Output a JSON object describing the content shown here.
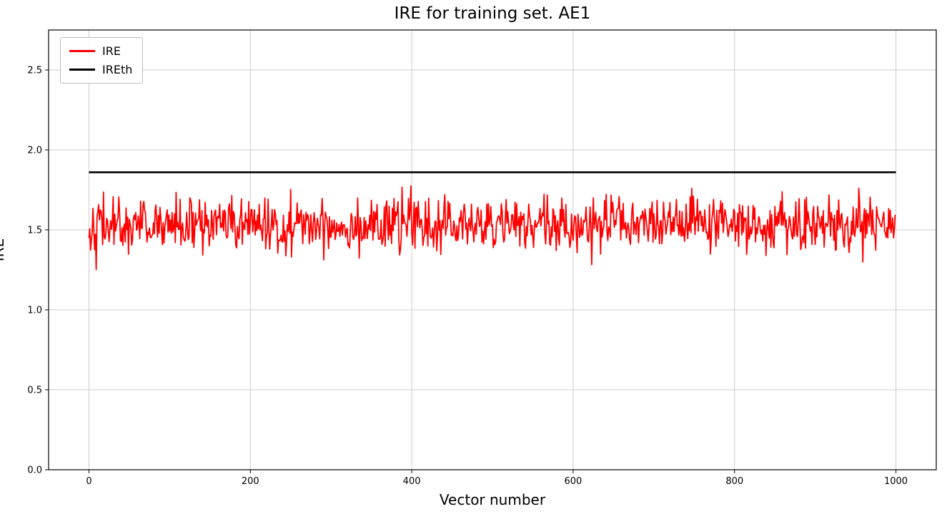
{
  "chart_data": {
    "type": "line",
    "title": "IRE for training set. AE1",
    "xlabel": "Vector number",
    "ylabel": "IRE",
    "xlim": [
      -50,
      1050
    ],
    "ylim": [
      0.0,
      2.75
    ],
    "xticks": [
      0,
      200,
      400,
      600,
      800,
      1000
    ],
    "yticks": [
      0.0,
      0.5,
      1.0,
      1.5,
      2.0,
      2.5
    ],
    "grid": true,
    "grid_color": "#cccccc",
    "legend_position": "upper-left",
    "series": [
      {
        "name": "IRE",
        "render": "noisy-line",
        "color": "#ff0000",
        "n_points": 1000,
        "x_start": 0,
        "x_end": 999,
        "approx_mean": 1.53,
        "approx_std": 0.085,
        "approx_min": 1.24,
        "approx_max": 1.85,
        "seed": 42
      },
      {
        "name": "IREth",
        "render": "hline",
        "color": "#000000",
        "value": 1.86,
        "x_start": 0,
        "x_end": 1000
      }
    ],
    "legend": [
      {
        "label": "IRE",
        "color": "#ff0000"
      },
      {
        "label": "IREth",
        "color": "#000000"
      }
    ]
  }
}
